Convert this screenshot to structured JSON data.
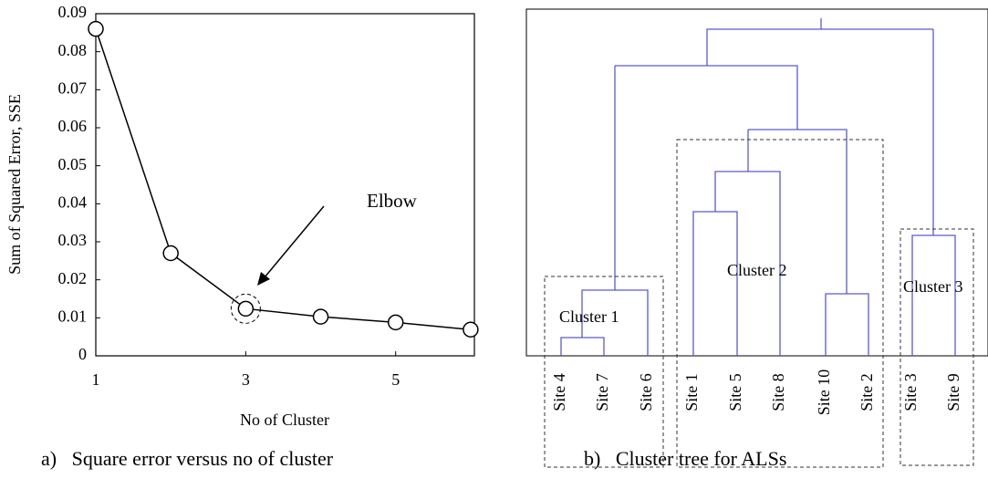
{
  "chart_data": {
    "type": "line",
    "xlabel": "No of Cluster",
    "ylabel": "Sum of Squared Error, SSE",
    "x": [
      1,
      2,
      3,
      4,
      5,
      6
    ],
    "series": [
      {
        "color": "#000000",
        "values": [
          0.086,
          0.027,
          0.0124,
          0.0103,
          0.0088,
          0.0069
        ]
      }
    ],
    "xlim": [
      1,
      6.05
    ],
    "xticks": [
      1,
      3,
      5
    ],
    "ylim": [
      0,
      0.09
    ],
    "yticks": [
      0,
      0.01,
      0.02,
      0.03,
      0.04,
      0.05,
      0.06,
      0.07,
      0.08,
      0.09
    ],
    "annotation": "Elbow"
  },
  "dendrogram": {
    "leaves": [
      "Site 4",
      "Site 7",
      "Site 6",
      "Site 1",
      "Site 5",
      "Site 8",
      "Site 10",
      "Site 2",
      "Site 3",
      "Site 9"
    ],
    "clusters": [
      "Cluster 1",
      "Cluster 2",
      "Cluster 3"
    ]
  },
  "captions": [
    "a)   Square error versus no of cluster",
    "b)   Cluster tree for ALSs"
  ]
}
